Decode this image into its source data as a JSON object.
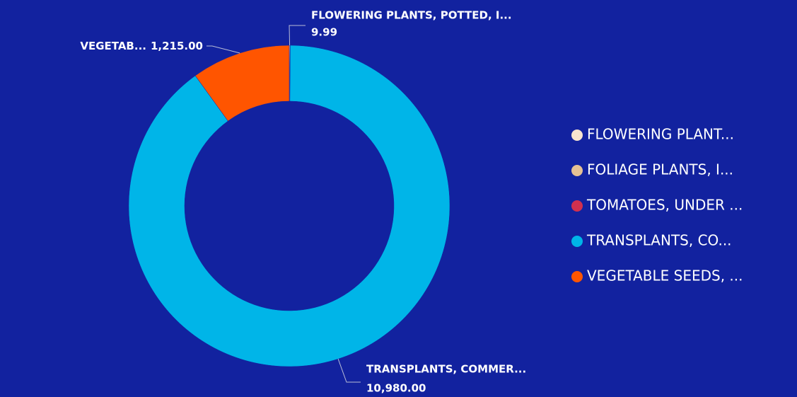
{
  "chart_data": {
    "type": "pie",
    "donut": true,
    "categories": [
      "FLOWERING PLANT...",
      "FOLIAGE PLANTS, I...",
      "TOMATOES, UNDER ...",
      "TRANSPLANTS, CO...",
      "VEGETABLE SEEDS, ..."
    ],
    "values": [
      9.99,
      1,
      1,
      10980,
      1215
    ],
    "value_labels": [
      "9.99",
      null,
      null,
      "10,980.00",
      "1,215.00"
    ],
    "slice_labels": [
      "FLOWERING PLANTS, POTTED, I...",
      null,
      null,
      "TRANSPLANTS, COMMER...",
      "VEGETAB..."
    ],
    "colors": [
      "#f7e4cf",
      "#e5c194",
      "#d1304f",
      "#00b5e8",
      "#ff5500"
    ],
    "legend": "right"
  }
}
